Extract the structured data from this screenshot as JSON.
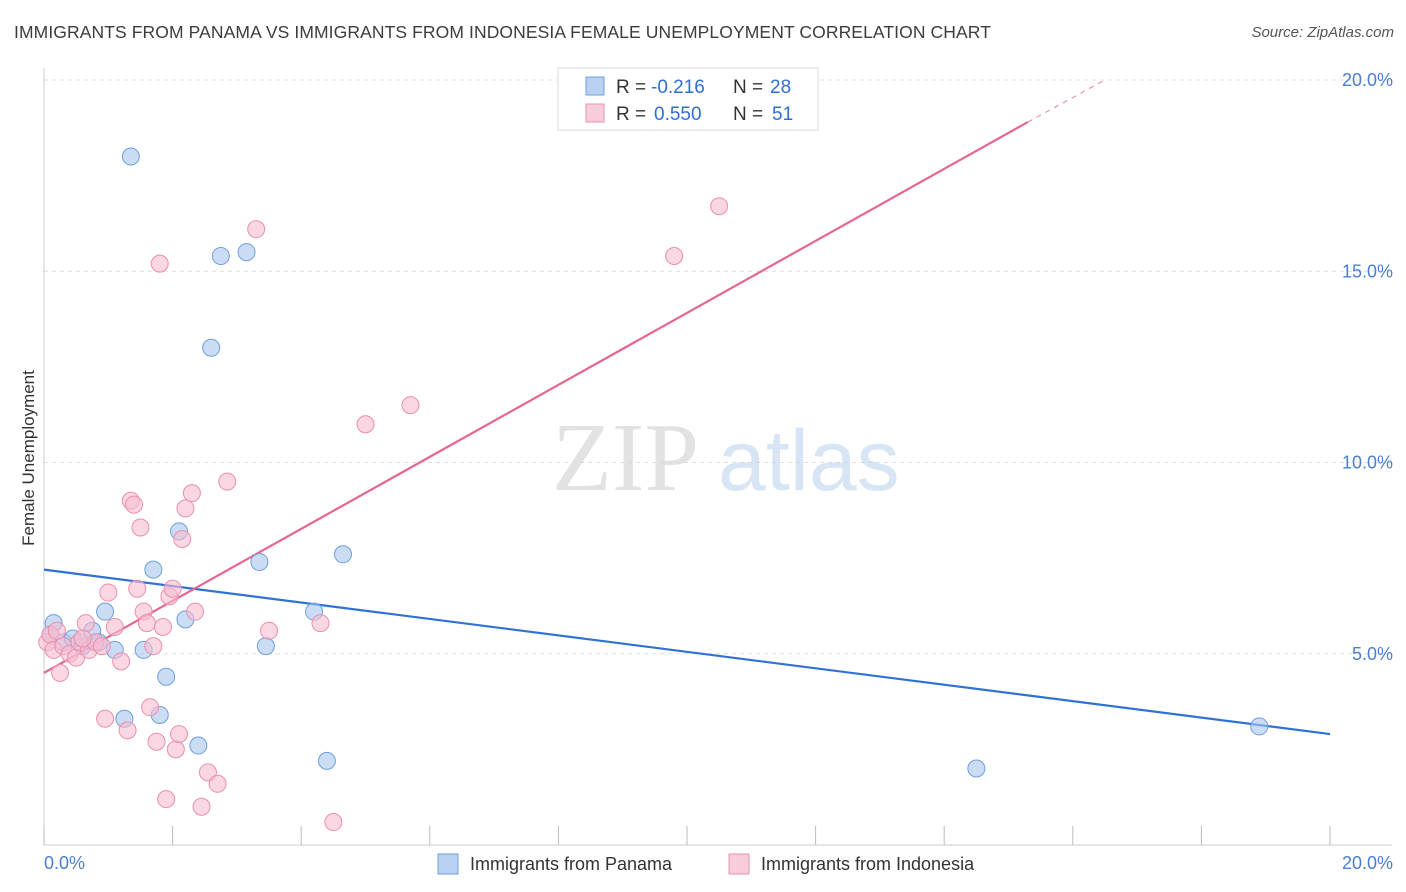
{
  "header": {
    "title": "IMMIGRANTS FROM PANAMA VS IMMIGRANTS FROM INDONESIA FEMALE UNEMPLOYMENT CORRELATION CHART",
    "source": "Source: ZipAtlas.com"
  },
  "watermark": {
    "zip": "ZIP",
    "atlas": "atlas"
  },
  "chart_data": {
    "type": "scatter",
    "ylabel": "Female Unemployment",
    "xlim": [
      0,
      20
    ],
    "ylim": [
      0,
      20
    ],
    "x_tick_labels": [
      "0.0%",
      "20.0%"
    ],
    "y_ticks": [
      5,
      10,
      15,
      20
    ],
    "y_tick_labels": [
      "5.0%",
      "10.0%",
      "15.0%",
      "20.0%"
    ],
    "grid": true,
    "legend_position": "top-center",
    "legend": [
      {
        "r_label": "R =",
        "r_value": "-0.216",
        "n_label": "N =",
        "n_value": "28"
      },
      {
        "r_label": "R =",
        "r_value": "0.550",
        "n_label": "N =",
        "n_value": "51"
      }
    ],
    "series": [
      {
        "name": "Immigrants from Panama",
        "color": "#a9c6ee",
        "stroke": "#6f9fdd",
        "line_color": "#2f72d3",
        "trend": {
          "x": [
            0,
            20
          ],
          "y": [
            7.2,
            2.9
          ]
        },
        "points": [
          [
            0.15,
            5.8
          ],
          [
            0.1,
            5.5
          ],
          [
            0.3,
            5.3
          ],
          [
            0.45,
            5.4
          ],
          [
            0.6,
            5.2
          ],
          [
            0.75,
            5.6
          ],
          [
            0.85,
            5.3
          ],
          [
            0.95,
            6.1
          ],
          [
            1.1,
            5.1
          ],
          [
            1.25,
            3.3
          ],
          [
            1.55,
            5.1
          ],
          [
            1.35,
            18.0
          ],
          [
            1.7,
            7.2
          ],
          [
            1.8,
            3.4
          ],
          [
            1.9,
            4.4
          ],
          [
            2.1,
            8.2
          ],
          [
            2.2,
            5.9
          ],
          [
            2.4,
            2.6
          ],
          [
            2.6,
            13.0
          ],
          [
            2.75,
            15.4
          ],
          [
            3.15,
            15.5
          ],
          [
            3.35,
            7.4
          ],
          [
            3.45,
            5.2
          ],
          [
            4.2,
            6.1
          ],
          [
            4.4,
            2.2
          ],
          [
            4.65,
            7.6
          ],
          [
            14.5,
            2.0
          ],
          [
            18.9,
            3.1
          ]
        ]
      },
      {
        "name": "Immigrants from Indonesia",
        "color": "#f6bcd0",
        "stroke": "#e990ae",
        "line_color": "#e5668f",
        "trend": {
          "x": [
            0,
            15.3
          ],
          "y": [
            4.5,
            18.9
          ]
        },
        "trend_dashed": {
          "x": [
            15.3,
            16.5
          ],
          "y": [
            18.9,
            20.0
          ]
        },
        "points": [
          [
            0.05,
            5.3
          ],
          [
            0.1,
            5.5
          ],
          [
            0.15,
            5.1
          ],
          [
            0.25,
            4.5
          ],
          [
            0.3,
            5.2
          ],
          [
            0.4,
            5.0
          ],
          [
            0.5,
            4.9
          ],
          [
            0.55,
            5.3
          ],
          [
            0.65,
            5.8
          ],
          [
            0.7,
            5.1
          ],
          [
            0.8,
            5.3
          ],
          [
            0.9,
            5.2
          ],
          [
            0.95,
            3.3
          ],
          [
            1.0,
            6.6
          ],
          [
            1.1,
            5.7
          ],
          [
            1.2,
            4.8
          ],
          [
            1.3,
            3.0
          ],
          [
            1.35,
            9.0
          ],
          [
            1.4,
            8.9
          ],
          [
            1.45,
            6.7
          ],
          [
            1.5,
            8.3
          ],
          [
            1.55,
            6.1
          ],
          [
            1.6,
            5.8
          ],
          [
            1.65,
            3.6
          ],
          [
            1.7,
            5.2
          ],
          [
            1.75,
            2.7
          ],
          [
            1.8,
            15.2
          ],
          [
            1.85,
            5.7
          ],
          [
            1.9,
            1.2
          ],
          [
            1.95,
            6.5
          ],
          [
            2.0,
            6.7
          ],
          [
            2.05,
            2.5
          ],
          [
            2.1,
            2.9
          ],
          [
            2.15,
            8.0
          ],
          [
            2.2,
            8.8
          ],
          [
            2.3,
            9.2
          ],
          [
            2.35,
            6.1
          ],
          [
            2.45,
            1.0
          ],
          [
            2.55,
            1.9
          ],
          [
            2.7,
            1.6
          ],
          [
            2.85,
            9.5
          ],
          [
            3.3,
            16.1
          ],
          [
            3.5,
            5.6
          ],
          [
            4.3,
            5.8
          ],
          [
            4.5,
            0.6
          ],
          [
            5.0,
            11.0
          ],
          [
            5.7,
            11.5
          ],
          [
            9.8,
            15.4
          ],
          [
            10.5,
            16.7
          ],
          [
            0.2,
            5.6
          ],
          [
            0.6,
            5.4
          ]
        ]
      }
    ]
  }
}
